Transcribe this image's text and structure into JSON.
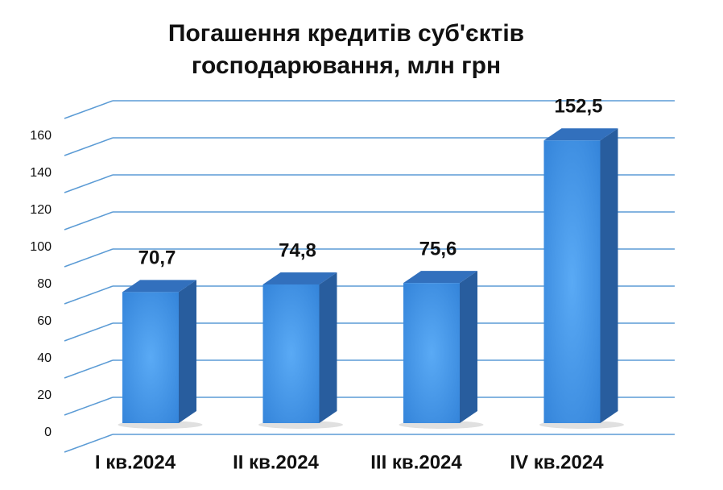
{
  "chart_data": {
    "type": "bar3d",
    "title": "Погашення кредитів суб'єктів господарювання, млн грн",
    "categories": [
      "I кв.2024",
      "II кв.2024",
      "III кв.2024",
      "IV кв.2024"
    ],
    "values": [
      70.7,
      74.8,
      75.6,
      152.5
    ],
    "value_labels": [
      "70,7",
      "74,8",
      "75,6",
      "152,5"
    ],
    "color": "#3d8fe0",
    "ylim": [
      0,
      180
    ],
    "yticks": [
      0,
      20,
      40,
      60,
      80,
      100,
      120,
      140,
      160
    ],
    "grid": true
  }
}
